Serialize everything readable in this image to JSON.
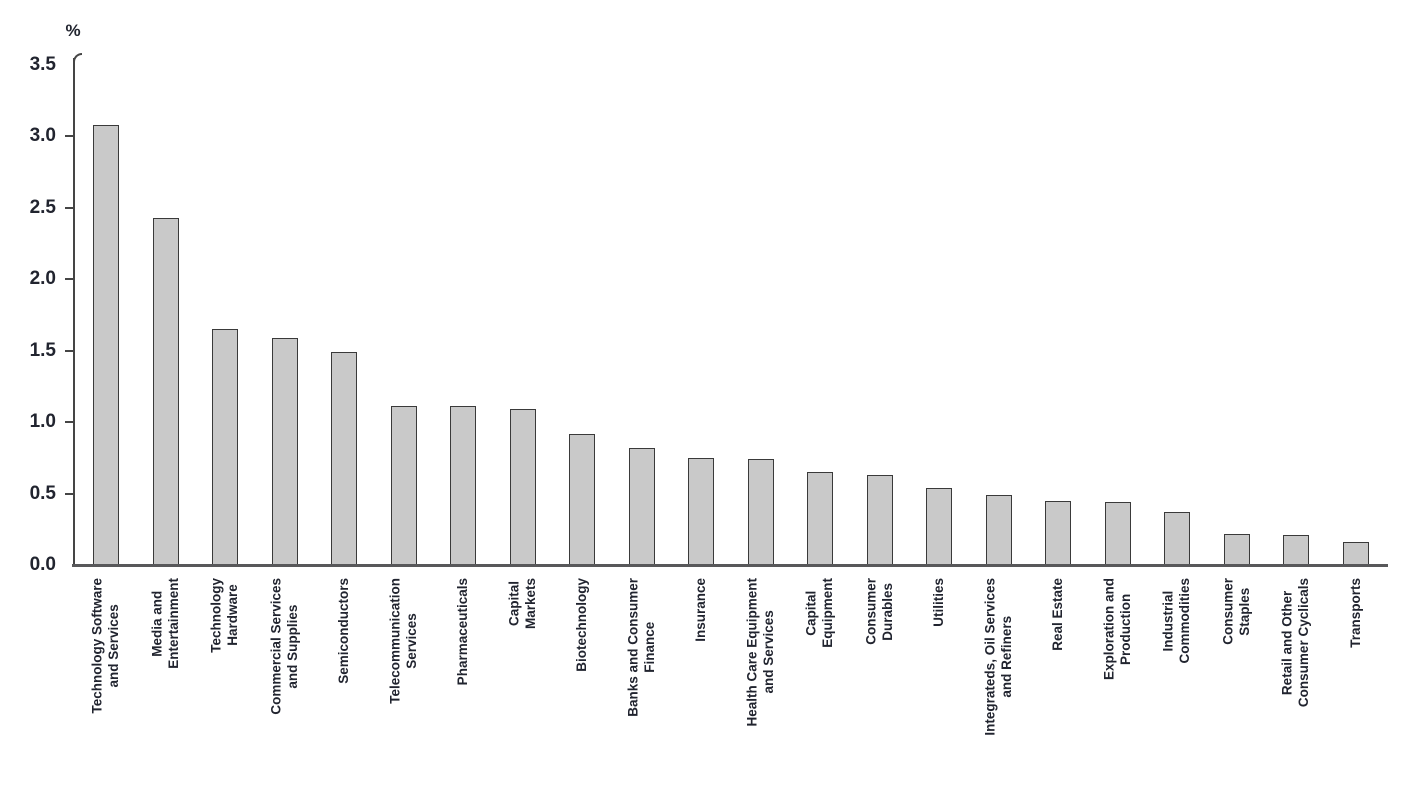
{
  "chart_data": {
    "type": "bar",
    "title": "",
    "ylabel": "%",
    "xlabel": "",
    "ylim": [
      0,
      3.5
    ],
    "ytick_step": 0.5,
    "yticks": [
      "3.5",
      "3.0",
      "2.5",
      "2.0",
      "1.5",
      "1.0",
      "0.5",
      "0.0"
    ],
    "grid": false,
    "legend": "none",
    "bar_fill_color": "#c9c9c9",
    "bar_border_color": "#3a3a3a",
    "axis_color": "#4d4d4d",
    "text_color": "#21242f",
    "categories": [
      "Technology Software and Services",
      "Media and Entertainment",
      "Technology Hardware",
      "Commercial Services and Supplies",
      "Semiconductors",
      "Telecommunication Services",
      "Pharmaceuticals",
      "Capital Markets",
      "Biotechnology",
      "Banks and Consumer Finance",
      "Insurance",
      "Health Care Equipment and Services",
      "Capital Equipment",
      "Consumer Durables",
      "Utilities",
      "Integrateds, Oil Services and Refiners",
      "Real Estate",
      "Exploration and Production",
      "Industrial Commodities",
      "Consumer Staples",
      "Retail and Other Consumer Cyclicals",
      "Transports"
    ],
    "label_lines": [
      [
        "Technology Software",
        "and Services"
      ],
      [
        "Media and",
        "Entertainment"
      ],
      [
        "Technology",
        "Hardware"
      ],
      [
        "Commercial Services",
        "and Supplies"
      ],
      [
        "Semiconductors"
      ],
      [
        "Telecommunication",
        "Services"
      ],
      [
        "Pharmaceuticals"
      ],
      [
        "Capital",
        "Markets"
      ],
      [
        "Biotechnology"
      ],
      [
        "Banks and Consumer",
        "Finance"
      ],
      [
        "Insurance"
      ],
      [
        "Health Care Equipment",
        "and Services"
      ],
      [
        "Capital",
        "Equipment"
      ],
      [
        "Consumer",
        "Durables"
      ],
      [
        "Utilities"
      ],
      [
        "Integrateds, Oil Services",
        "and Refiners"
      ],
      [
        "Real Estate"
      ],
      [
        "Exploration and",
        "Production"
      ],
      [
        "Industrial",
        "Commodities"
      ],
      [
        "Consumer",
        "Staples"
      ],
      [
        "Retail and Other",
        "Consumer Cyclicals"
      ],
      [
        "Transports"
      ]
    ],
    "values": [
      3.08,
      2.43,
      1.65,
      1.59,
      1.49,
      1.11,
      1.11,
      1.09,
      0.92,
      0.82,
      0.75,
      0.74,
      0.65,
      0.63,
      0.54,
      0.49,
      0.45,
      0.44,
      0.37,
      0.22,
      0.21,
      0.16
    ]
  }
}
